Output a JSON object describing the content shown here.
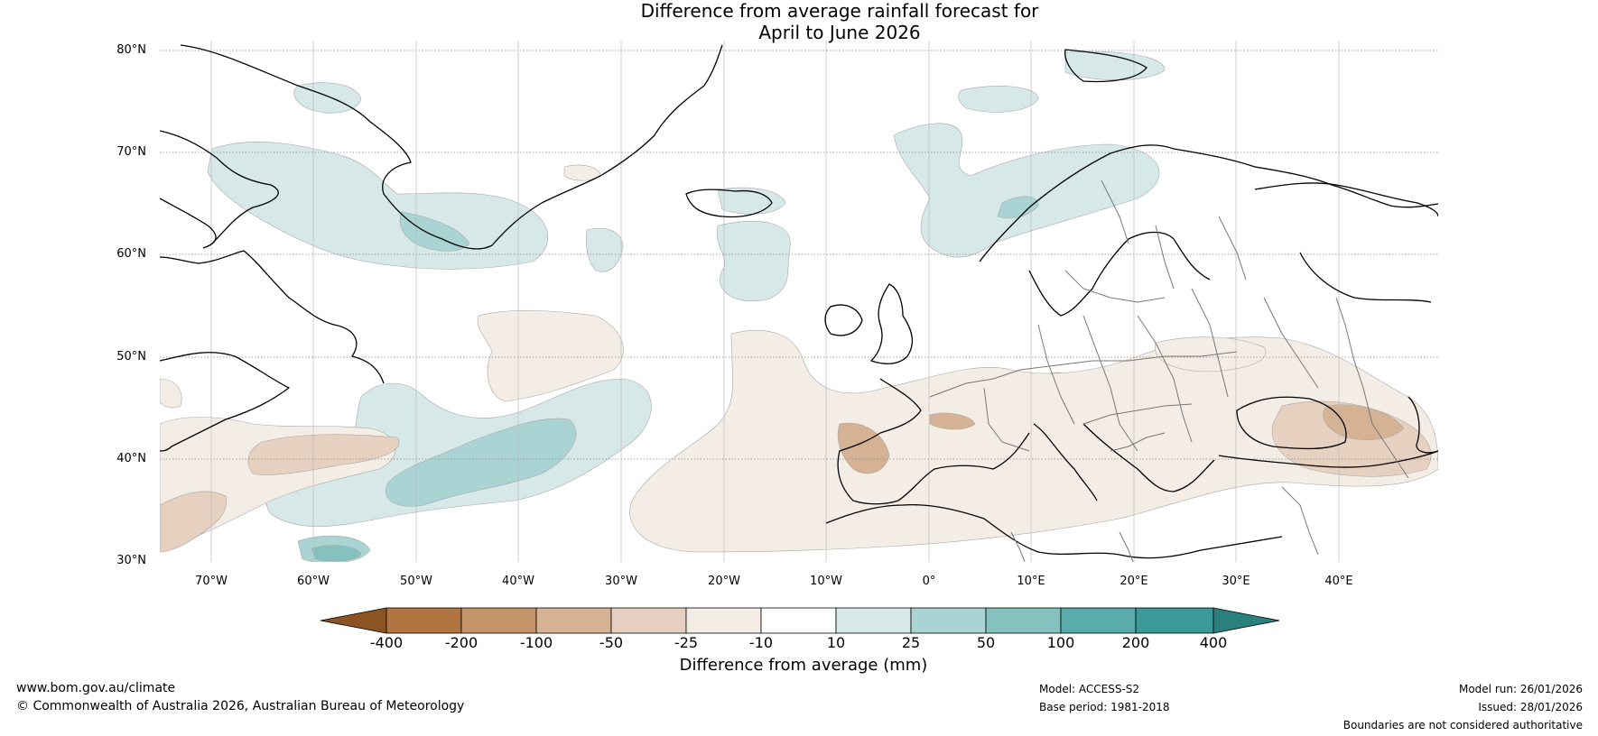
{
  "title_line1": "Difference from average rainfall forecast for",
  "title_line2": "April to June 2026",
  "map": {
    "lat_labels": [
      "80°N",
      "70°N",
      "60°N",
      "50°N",
      "40°N",
      "30°N"
    ],
    "lon_labels": [
      "70°W",
      "60°W",
      "50°W",
      "40°W",
      "30°W",
      "20°W",
      "10°W",
      "0°",
      "10°E",
      "20°E",
      "30°E",
      "40°E"
    ]
  },
  "colorbar": {
    "labels": [
      "-400",
      "-200",
      "-100",
      "-50",
      "-25",
      "-10",
      "10",
      "25",
      "50",
      "100",
      "200",
      "400"
    ],
    "colors": [
      "#8c5423",
      "#b07540",
      "#c29468",
      "#d4b293",
      "#e6d0bf",
      "#f3ede5",
      "#ffffff",
      "#d6e9e8",
      "#aad4d4",
      "#84c1bf",
      "#5aabab",
      "#3a9a98",
      "#2a807c"
    ],
    "title": "Difference from average (mm)"
  },
  "footer": {
    "website": "www.bom.gov.au/climate",
    "copyright": "© Commonwealth of Australia 2026, Australian Bureau of Meteorology",
    "model": "Model: ACCESS-S2",
    "base_period": "Base period: 1981-2018",
    "model_run": "Model run: 26/01/2026",
    "issued": "Issued: 28/01/2026",
    "disclaimer": "Boundaries are not considered authoritative"
  }
}
